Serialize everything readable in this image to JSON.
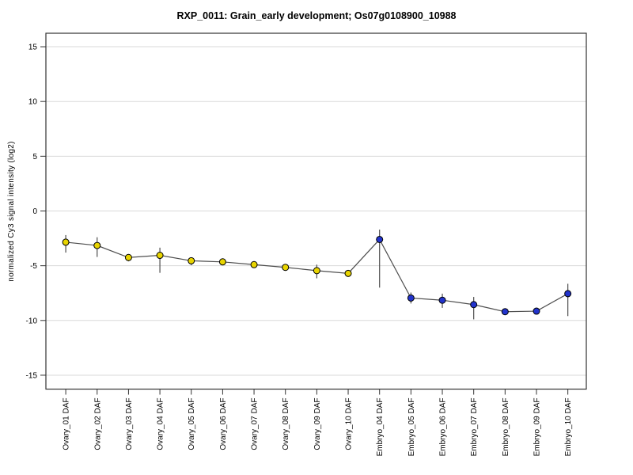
{
  "chart_data": {
    "type": "line",
    "title": "RXP_0011: Grain_early development; Os07g0108900_10988",
    "xlabel": "",
    "ylabel": "normalized Cy3 signal intensity (log2)",
    "ylim": [
      -16.3,
      16.3
    ],
    "yticks": [
      15,
      10,
      5,
      0,
      -5,
      -10,
      -15
    ],
    "grid": "horizontal",
    "legend": "none",
    "categories": [
      "Ovary_01 DAF",
      "Ovary_02 DAF",
      "Ovary_03 DAF",
      "Ovary_04 DAF",
      "Ovary_05 DAF",
      "Ovary_06 DAF",
      "Ovary_07 DAF",
      "Ovary_08 DAF",
      "Ovary_09 DAF",
      "Ovary_10 DAF",
      "Embryo_04 DAF",
      "Embryo_05 DAF",
      "Embryo_06 DAF",
      "Embryo_07 DAF",
      "Embryo_08 DAF",
      "Embryo_09 DAF",
      "Embryo_10 DAF"
    ],
    "groups": [
      "ovary",
      "ovary",
      "ovary",
      "ovary",
      "ovary",
      "ovary",
      "ovary",
      "ovary",
      "ovary",
      "ovary",
      "embryo",
      "embryo",
      "embryo",
      "embryo",
      "embryo",
      "embryo",
      "embryo"
    ],
    "values": [
      -2.85,
      -3.15,
      -4.25,
      -4.05,
      -4.55,
      -4.65,
      -4.9,
      -5.15,
      -5.45,
      -5.7,
      -2.6,
      -7.95,
      -8.15,
      -8.55,
      -9.2,
      -9.15,
      -7.55
    ],
    "error_high": [
      -2.2,
      -2.4,
      -3.95,
      -3.35,
      -4.3,
      -4.4,
      -4.6,
      -4.95,
      -4.9,
      -5.4,
      -1.7,
      -7.45,
      -7.55,
      -7.85,
      -9.0,
      -8.95,
      -6.65
    ],
    "error_low": [
      -3.8,
      -4.2,
      -4.6,
      -5.65,
      -4.95,
      -4.9,
      -5.2,
      -5.35,
      -6.15,
      -6.0,
      -7.0,
      -8.45,
      -8.85,
      -9.9,
      -9.4,
      -9.35,
      -9.6
    ],
    "colors": {
      "ovary": "#e8d400",
      "embryo": "#2233cc",
      "line": "#4d4d4d",
      "grid": "#d9d9d9",
      "frame": "#333333",
      "point_stroke": "#000000"
    }
  }
}
